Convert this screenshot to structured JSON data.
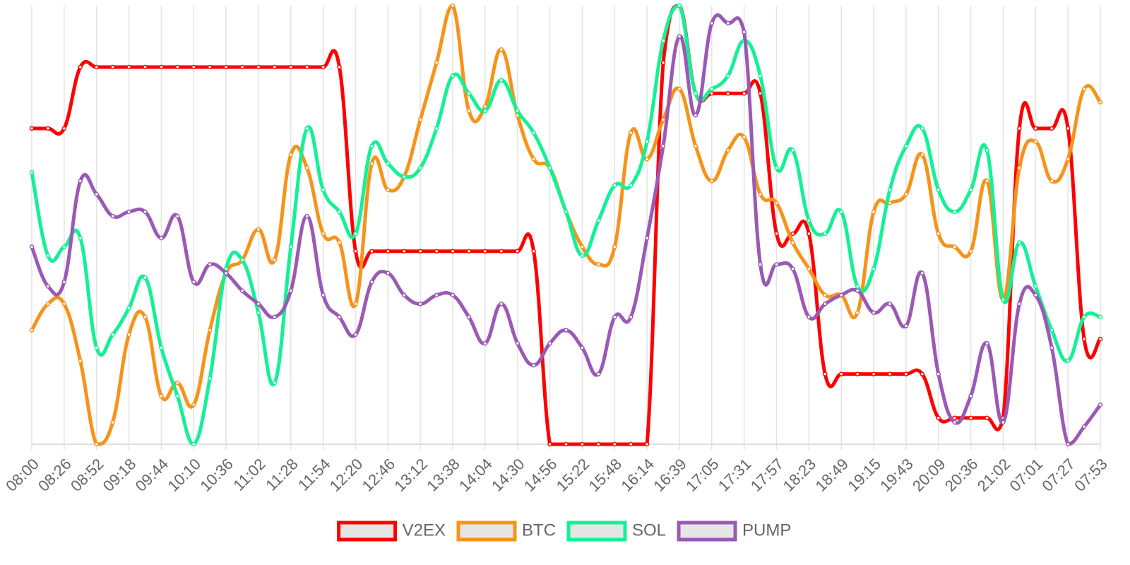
{
  "chart_data": {
    "type": "line",
    "categories": [
      "08:00",
      null,
      "08:26",
      null,
      "08:52",
      null,
      "09:18",
      null,
      "09:44",
      null,
      "10:10",
      null,
      "10:36",
      null,
      "11:02",
      null,
      "11:28",
      null,
      "11:54",
      null,
      "12:20",
      null,
      "12:46",
      null,
      "13:12",
      null,
      "13:38",
      null,
      "14:04",
      null,
      "14:30",
      null,
      "14:56",
      null,
      "15:22",
      null,
      "15:48",
      null,
      "16:14",
      null,
      "16:39",
      null,
      "17:05",
      null,
      "17:31",
      null,
      "17:57",
      null,
      "18:23",
      null,
      "18:49",
      null,
      "19:15",
      null,
      "19:43",
      null,
      "20:09",
      null,
      "20:36",
      null,
      "21:02",
      null,
      "07:01",
      null,
      "07:27",
      null,
      "07:53"
    ],
    "ylim": [
      0,
      100
    ],
    "grid": true,
    "legend": "bottom",
    "series": [
      {
        "name": "V2EX",
        "color": "#ff0000",
        "values": [
          72,
          72,
          72,
          86,
          86,
          86,
          86,
          86,
          86,
          86,
          86,
          86,
          86,
          86,
          86,
          86,
          86,
          86,
          86,
          86,
          44,
          44,
          44,
          44,
          44,
          44,
          44,
          44,
          44,
          44,
          44,
          44,
          0,
          0,
          0,
          0,
          0,
          0,
          0,
          87,
          100,
          80,
          80,
          80,
          80,
          80,
          48,
          48,
          48,
          16,
          16,
          16,
          16,
          16,
          16,
          16,
          6,
          6,
          6,
          6,
          6,
          72,
          72,
          72,
          72,
          24,
          24
        ]
      },
      {
        "name": "BTC",
        "color": "#f7931a",
        "values": [
          26,
          32,
          32,
          19,
          0,
          5,
          25,
          29,
          11,
          14,
          9,
          26,
          39,
          42,
          49,
          42,
          66,
          63,
          48,
          46,
          32,
          64,
          58,
          61,
          74,
          87,
          100,
          76,
          77,
          90,
          75,
          65,
          63,
          53,
          45,
          41,
          45,
          71,
          65,
          74,
          81,
          68,
          60,
          67,
          70,
          57,
          55,
          46,
          40,
          34,
          34,
          30,
          53,
          55,
          57,
          66,
          48,
          45,
          44,
          60,
          33,
          63,
          69,
          60,
          65,
          81,
          78
        ]
      },
      {
        "name": "SOL",
        "color": "#14f195",
        "values": [
          62,
          43,
          45,
          47,
          22,
          25,
          31,
          38,
          22,
          11,
          0,
          15,
          40,
          42,
          30,
          14,
          45,
          72,
          58,
          53,
          48,
          68,
          64,
          61,
          63,
          72,
          84,
          80,
          76,
          83,
          76,
          71,
          63,
          53,
          43,
          51,
          59,
          59,
          69,
          92,
          100,
          80,
          81,
          84,
          92,
          84,
          63,
          67,
          51,
          48,
          53,
          36,
          40,
          58,
          68,
          72,
          58,
          53,
          58,
          67,
          33,
          46,
          36,
          26,
          19,
          29,
          29
        ]
      },
      {
        "name": "PUMP",
        "color": "#9b59b6",
        "values": [
          45,
          36,
          37,
          60,
          57,
          52,
          53,
          53,
          47,
          52,
          37,
          41,
          39,
          35,
          32,
          29,
          35,
          52,
          34,
          29,
          25,
          37,
          39,
          34,
          32,
          34,
          34,
          29,
          23,
          32,
          23,
          18,
          23,
          26,
          22,
          16,
          29,
          29,
          47,
          68,
          93,
          75,
          96,
          96,
          94,
          41,
          41,
          40,
          29,
          32,
          34,
          35,
          30,
          32,
          27,
          39,
          16,
          5,
          11,
          23,
          5,
          32,
          34,
          22,
          0,
          4,
          9
        ]
      }
    ]
  }
}
